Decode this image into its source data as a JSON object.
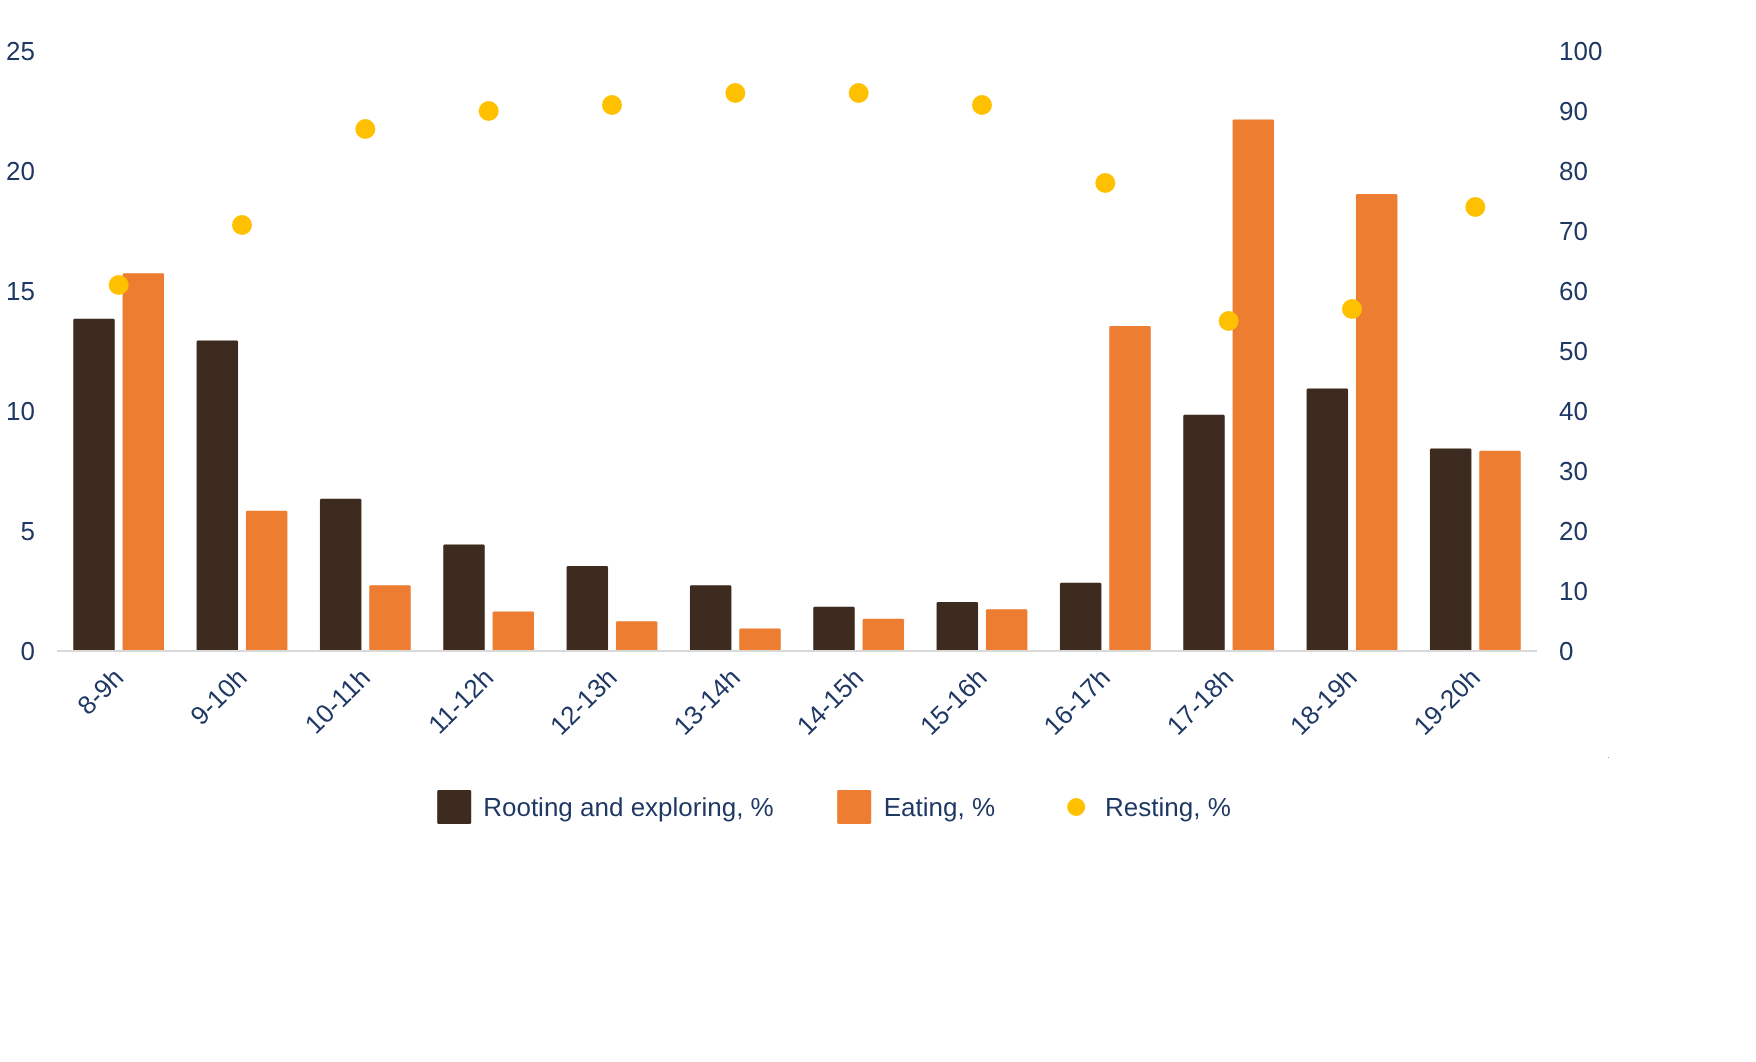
{
  "chart_data": {
    "type": "bar",
    "categories": [
      "8-9h",
      "9-10h",
      "10-11h",
      "11-12h",
      "12-13h",
      "13-14h",
      "14-15h",
      "15-16h",
      "16-17h",
      "17-18h",
      "18-19h",
      "19-20h"
    ],
    "series": [
      {
        "name": "Rooting and exploring, %",
        "color": "#3d2b1f",
        "values": [
          13.8,
          12.9,
          6.3,
          4.4,
          3.5,
          2.7,
          1.8,
          2.0,
          2.8,
          9.8,
          10.9,
          8.4
        ]
      },
      {
        "name": "Eating, %",
        "color": "#ed7d31",
        "values": [
          15.7,
          5.8,
          2.7,
          1.6,
          1.2,
          0.9,
          1.3,
          1.7,
          13.5,
          22.1,
          19.0,
          8.3
        ]
      },
      {
        "name": "Resting, %",
        "type": "scatter",
        "axis": "y2",
        "marker": "circle",
        "color": "#ffc000",
        "values": [
          61,
          71,
          87,
          90,
          91,
          93,
          93,
          91,
          78,
          55,
          57,
          74
        ]
      }
    ],
    "ylim": [
      0,
      25
    ],
    "yticks": [
      0,
      5,
      10,
      15,
      20,
      25
    ],
    "y2lim": [
      0,
      100
    ],
    "y2ticks": [
      0,
      10,
      20,
      30,
      40,
      50,
      60,
      70,
      80,
      90,
      100
    ],
    "grid": false,
    "legend": "bottom"
  }
}
